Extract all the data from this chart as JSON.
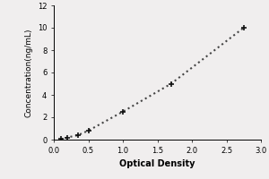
{
  "x_data": [
    0.1,
    0.2,
    0.35,
    0.5,
    1.0,
    1.7,
    2.75
  ],
  "y_data": [
    0.05,
    0.2,
    0.4,
    0.8,
    2.5,
    5.0,
    10.0
  ],
  "xlabel": "Optical Density",
  "ylabel": "Concentration(ng/mL)",
  "xlim": [
    0,
    3
  ],
  "ylim": [
    0,
    12
  ],
  "xticks": [
    0,
    0.5,
    1,
    1.5,
    2,
    2.5,
    3
  ],
  "yticks": [
    0,
    2,
    4,
    6,
    8,
    10,
    12
  ],
  "line_color": "#444444",
  "marker": "+",
  "marker_color": "#111111",
  "marker_size": 5,
  "marker_linewidth": 1.2,
  "line_style": "dotted",
  "line_width": 1.5,
  "background_color": "#f0eeee",
  "xlabel_fontsize": 7,
  "ylabel_fontsize": 6.5,
  "tick_fontsize": 6,
  "xlabel_bold": true
}
